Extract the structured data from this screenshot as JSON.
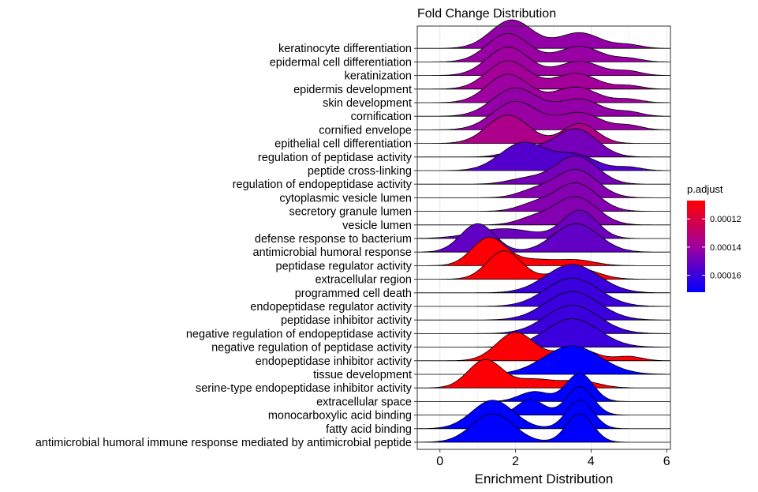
{
  "chart_data": {
    "type": "ridgeline",
    "title": "Fold Change Distribution",
    "xlabel": "Enrichment Distribution",
    "ylabel": "",
    "xlim": [
      -0.6,
      6.1
    ],
    "x_ticks": [
      0,
      2,
      4,
      6
    ],
    "x_tick_labels": [
      "0",
      "2",
      "4",
      "6"
    ],
    "grid": true,
    "legend": {
      "title": "p.adjust",
      "placement": "right",
      "type": "colorbar",
      "range": [
        0.000107,
        0.000172
      ],
      "ticks": [
        0.00012,
        0.00014,
        0.00016
      ],
      "tick_labels": [
        "0.00012",
        "0.00014",
        "0.00016"
      ],
      "low_color": "#FF0000",
      "mid_color": "#A000A0",
      "high_color": "#0000FF"
    },
    "series": [
      {
        "name": "keratinocyte differentiation",
        "p_adjust": 0.000142,
        "components": [
          [
            1.9,
            0.55,
            1.0
          ],
          [
            3.7,
            0.55,
            0.55
          ],
          [
            5.0,
            0.35,
            0.12
          ]
        ]
      },
      {
        "name": "epidermal cell differentiation",
        "p_adjust": 0.000141,
        "components": [
          [
            1.8,
            0.55,
            1.0
          ],
          [
            3.7,
            0.55,
            0.55
          ],
          [
            5.0,
            0.35,
            0.12
          ]
        ]
      },
      {
        "name": "keratinization",
        "p_adjust": 0.00014,
        "components": [
          [
            1.8,
            0.55,
            1.0
          ],
          [
            3.7,
            0.55,
            0.5
          ],
          [
            5.0,
            0.35,
            0.15
          ]
        ]
      },
      {
        "name": "epidermis development",
        "p_adjust": 0.000138,
        "components": [
          [
            1.8,
            0.55,
            1.0
          ],
          [
            3.6,
            0.55,
            0.55
          ],
          [
            5.0,
            0.35,
            0.12
          ]
        ]
      },
      {
        "name": "skin development",
        "p_adjust": 0.00014,
        "components": [
          [
            1.8,
            0.55,
            1.0
          ],
          [
            3.6,
            0.55,
            0.55
          ],
          [
            5.0,
            0.35,
            0.12
          ]
        ]
      },
      {
        "name": "cornification",
        "p_adjust": 0.000142,
        "components": [
          [
            2.0,
            0.6,
            1.0
          ],
          [
            3.7,
            0.55,
            0.6
          ],
          [
            5.0,
            0.35,
            0.15
          ]
        ]
      },
      {
        "name": "cornified envelope",
        "p_adjust": 0.000141,
        "components": [
          [
            2.0,
            0.6,
            1.0
          ],
          [
            3.7,
            0.55,
            0.6
          ],
          [
            5.0,
            0.35,
            0.15
          ]
        ]
      },
      {
        "name": "epithelial cell differentiation",
        "p_adjust": 0.000135,
        "components": [
          [
            1.8,
            0.55,
            1.0
          ],
          [
            3.7,
            0.45,
            0.7
          ]
        ]
      },
      {
        "name": "regulation of peptidase activity",
        "p_adjust": 0.000148,
        "components": [
          [
            3.6,
            0.55,
            1.0
          ],
          [
            2.3,
            0.5,
            0.3
          ]
        ]
      },
      {
        "name": "peptide cross-linking",
        "p_adjust": 0.000155,
        "components": [
          [
            2.2,
            0.6,
            1.0
          ],
          [
            3.6,
            0.55,
            0.55
          ],
          [
            5.0,
            0.35,
            0.12
          ]
        ]
      },
      {
        "name": "regulation of endopeptidase activity",
        "p_adjust": 0.000148,
        "components": [
          [
            3.6,
            0.55,
            1.0
          ],
          [
            2.3,
            0.5,
            0.2
          ]
        ]
      },
      {
        "name": "cytoplasmic vesicle lumen",
        "p_adjust": 0.000145,
        "components": [
          [
            3.6,
            0.55,
            1.0
          ],
          [
            2.5,
            0.45,
            0.25
          ]
        ]
      },
      {
        "name": "secretory granule lumen",
        "p_adjust": 0.000145,
        "components": [
          [
            3.6,
            0.55,
            1.0
          ],
          [
            2.5,
            0.45,
            0.25
          ]
        ]
      },
      {
        "name": "vesicle lumen",
        "p_adjust": 0.000145,
        "components": [
          [
            3.6,
            0.55,
            1.0
          ],
          [
            2.5,
            0.45,
            0.25
          ]
        ]
      },
      {
        "name": "defense response to bacterium",
        "p_adjust": 0.00015,
        "components": [
          [
            3.7,
            0.45,
            1.0
          ],
          [
            1.7,
            0.8,
            0.35
          ]
        ]
      },
      {
        "name": "antimicrobial humoral response",
        "p_adjust": 0.000152,
        "components": [
          [
            1.0,
            0.45,
            1.0
          ],
          [
            3.6,
            0.6,
            1.0
          ]
        ]
      },
      {
        "name": "peptidase regulator activity",
        "p_adjust": 0.000108,
        "components": [
          [
            1.3,
            0.45,
            1.0
          ],
          [
            2.5,
            0.5,
            0.2
          ],
          [
            3.6,
            0.5,
            0.2
          ]
        ]
      },
      {
        "name": "extracellular region",
        "p_adjust": 0.000108,
        "components": [
          [
            1.7,
            0.45,
            1.0
          ],
          [
            3.6,
            0.55,
            0.4
          ]
        ]
      },
      {
        "name": "programmed cell death",
        "p_adjust": 0.00016,
        "components": [
          [
            3.5,
            0.7,
            1.0
          ]
        ]
      },
      {
        "name": "endopeptidase regulator activity",
        "p_adjust": 0.00016,
        "components": [
          [
            3.5,
            0.7,
            1.0
          ]
        ]
      },
      {
        "name": "peptidase inhibitor activity",
        "p_adjust": 0.00016,
        "components": [
          [
            3.5,
            0.7,
            1.0
          ]
        ]
      },
      {
        "name": "negative regulation of endopeptidase activity",
        "p_adjust": 0.00016,
        "components": [
          [
            3.5,
            0.7,
            1.0
          ]
        ]
      },
      {
        "name": "negative regulation of peptidase activity",
        "p_adjust": 0.00016,
        "components": [
          [
            3.5,
            0.7,
            1.0
          ]
        ]
      },
      {
        "name": "endopeptidase inhibitor activity",
        "p_adjust": 0.000108,
        "components": [
          [
            2.0,
            0.5,
            1.0
          ],
          [
            3.6,
            0.5,
            0.45
          ],
          [
            5.0,
            0.35,
            0.15
          ]
        ]
      },
      {
        "name": "tissue development",
        "p_adjust": 0.000172,
        "components": [
          [
            3.5,
            0.75,
            1.0
          ]
        ]
      },
      {
        "name": "serine-type endopeptidase inhibitor activity",
        "p_adjust": 0.000108,
        "components": [
          [
            1.2,
            0.45,
            1.0
          ],
          [
            2.5,
            0.5,
            0.3
          ],
          [
            3.7,
            0.5,
            0.25
          ]
        ]
      },
      {
        "name": "extracellular space",
        "p_adjust": 0.000172,
        "components": [
          [
            3.7,
            0.35,
            1.0
          ],
          [
            2.5,
            0.4,
            0.35
          ]
        ]
      },
      {
        "name": "monocarboxylic acid binding",
        "p_adjust": 0.000172,
        "components": [
          [
            3.7,
            0.35,
            1.0
          ],
          [
            2.4,
            0.35,
            0.55
          ]
        ]
      },
      {
        "name": "fatty acid binding",
        "p_adjust": 0.000172,
        "components": [
          [
            1.4,
            0.55,
            1.0
          ],
          [
            3.7,
            0.35,
            1.0
          ]
        ]
      },
      {
        "name": "antimicrobial humoral immune response mediated by antimicrobial peptide",
        "p_adjust": 0.000172,
        "components": [
          [
            1.4,
            0.55,
            1.0
          ],
          [
            3.7,
            0.35,
            1.0
          ]
        ]
      }
    ]
  }
}
